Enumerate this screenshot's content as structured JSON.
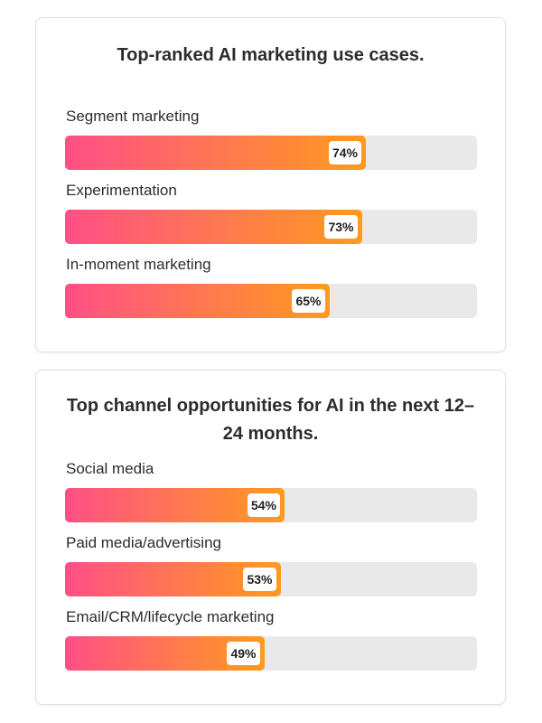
{
  "colors": {
    "gradient_start": "#ff4f86",
    "gradient_end": "#ff9a1e",
    "track": "#e9e9e9",
    "title_text": "#2c2c2c"
  },
  "chart_data": [
    {
      "type": "bar",
      "orientation": "horizontal",
      "title": "Top-ranked AI marketing use cases.",
      "categories": [
        "Segment marketing",
        "Experimentation",
        "In-moment marketing"
      ],
      "values": [
        74,
        73,
        65
      ],
      "value_labels": [
        "74%",
        "73%",
        "65%"
      ],
      "xlim": [
        0,
        100
      ],
      "unit": "%"
    },
    {
      "type": "bar",
      "orientation": "horizontal",
      "title": "Top channel opportunities for AI in the next 12–24 months.",
      "categories": [
        "Social media",
        "Paid media/advertising",
        "Email/CRM/lifecycle marketing"
      ],
      "values": [
        54,
        53,
        49
      ],
      "value_labels": [
        "54%",
        "53%",
        "49%"
      ],
      "xlim": [
        0,
        100
      ],
      "unit": "%"
    }
  ]
}
